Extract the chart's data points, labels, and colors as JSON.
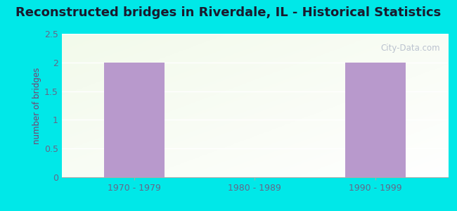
{
  "title": "Reconstructed bridges in Riverdale, IL - Historical Statistics",
  "categories": [
    "1970 - 1979",
    "1980 - 1989",
    "1990 - 1999"
  ],
  "values": [
    2,
    0,
    2
  ],
  "bar_color": "#b899cc",
  "ylabel": "number of bridges",
  "ylim": [
    0,
    2.5
  ],
  "yticks": [
    0,
    0.5,
    1,
    1.5,
    2,
    2.5
  ],
  "background_outer": "#00e8e8",
  "plot_bg_color": "#e8f5e2",
  "grid_color": "#d8eed8",
  "title_color": "#1a1a2e",
  "axis_label_color": "#7b3f6e",
  "tick_label_color": "#666688",
  "watermark_text": "City-Data.com",
  "title_fontsize": 13,
  "ylabel_fontsize": 8.5,
  "tick_fontsize": 9,
  "bar_width": 0.5
}
